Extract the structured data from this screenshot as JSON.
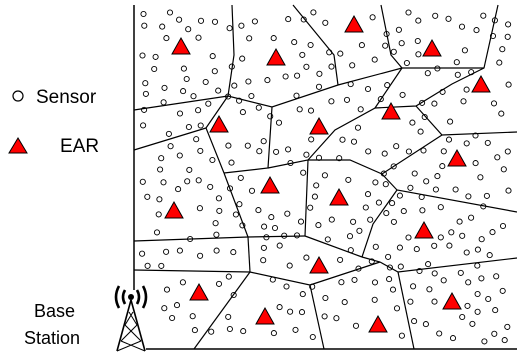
{
  "legend": {
    "sensor_label": "Sensor",
    "ear_label": "EAR"
  },
  "base_station": {
    "line1": "Base",
    "line2": "Station"
  },
  "colors": {
    "ear_fill": "#ff0000",
    "stroke": "#000000",
    "background": "#ffffff"
  },
  "icons": {
    "sensor": "hollow-circle-icon",
    "ear": "red-triangle-icon",
    "base_station": "antenna-tower-icon"
  }
}
